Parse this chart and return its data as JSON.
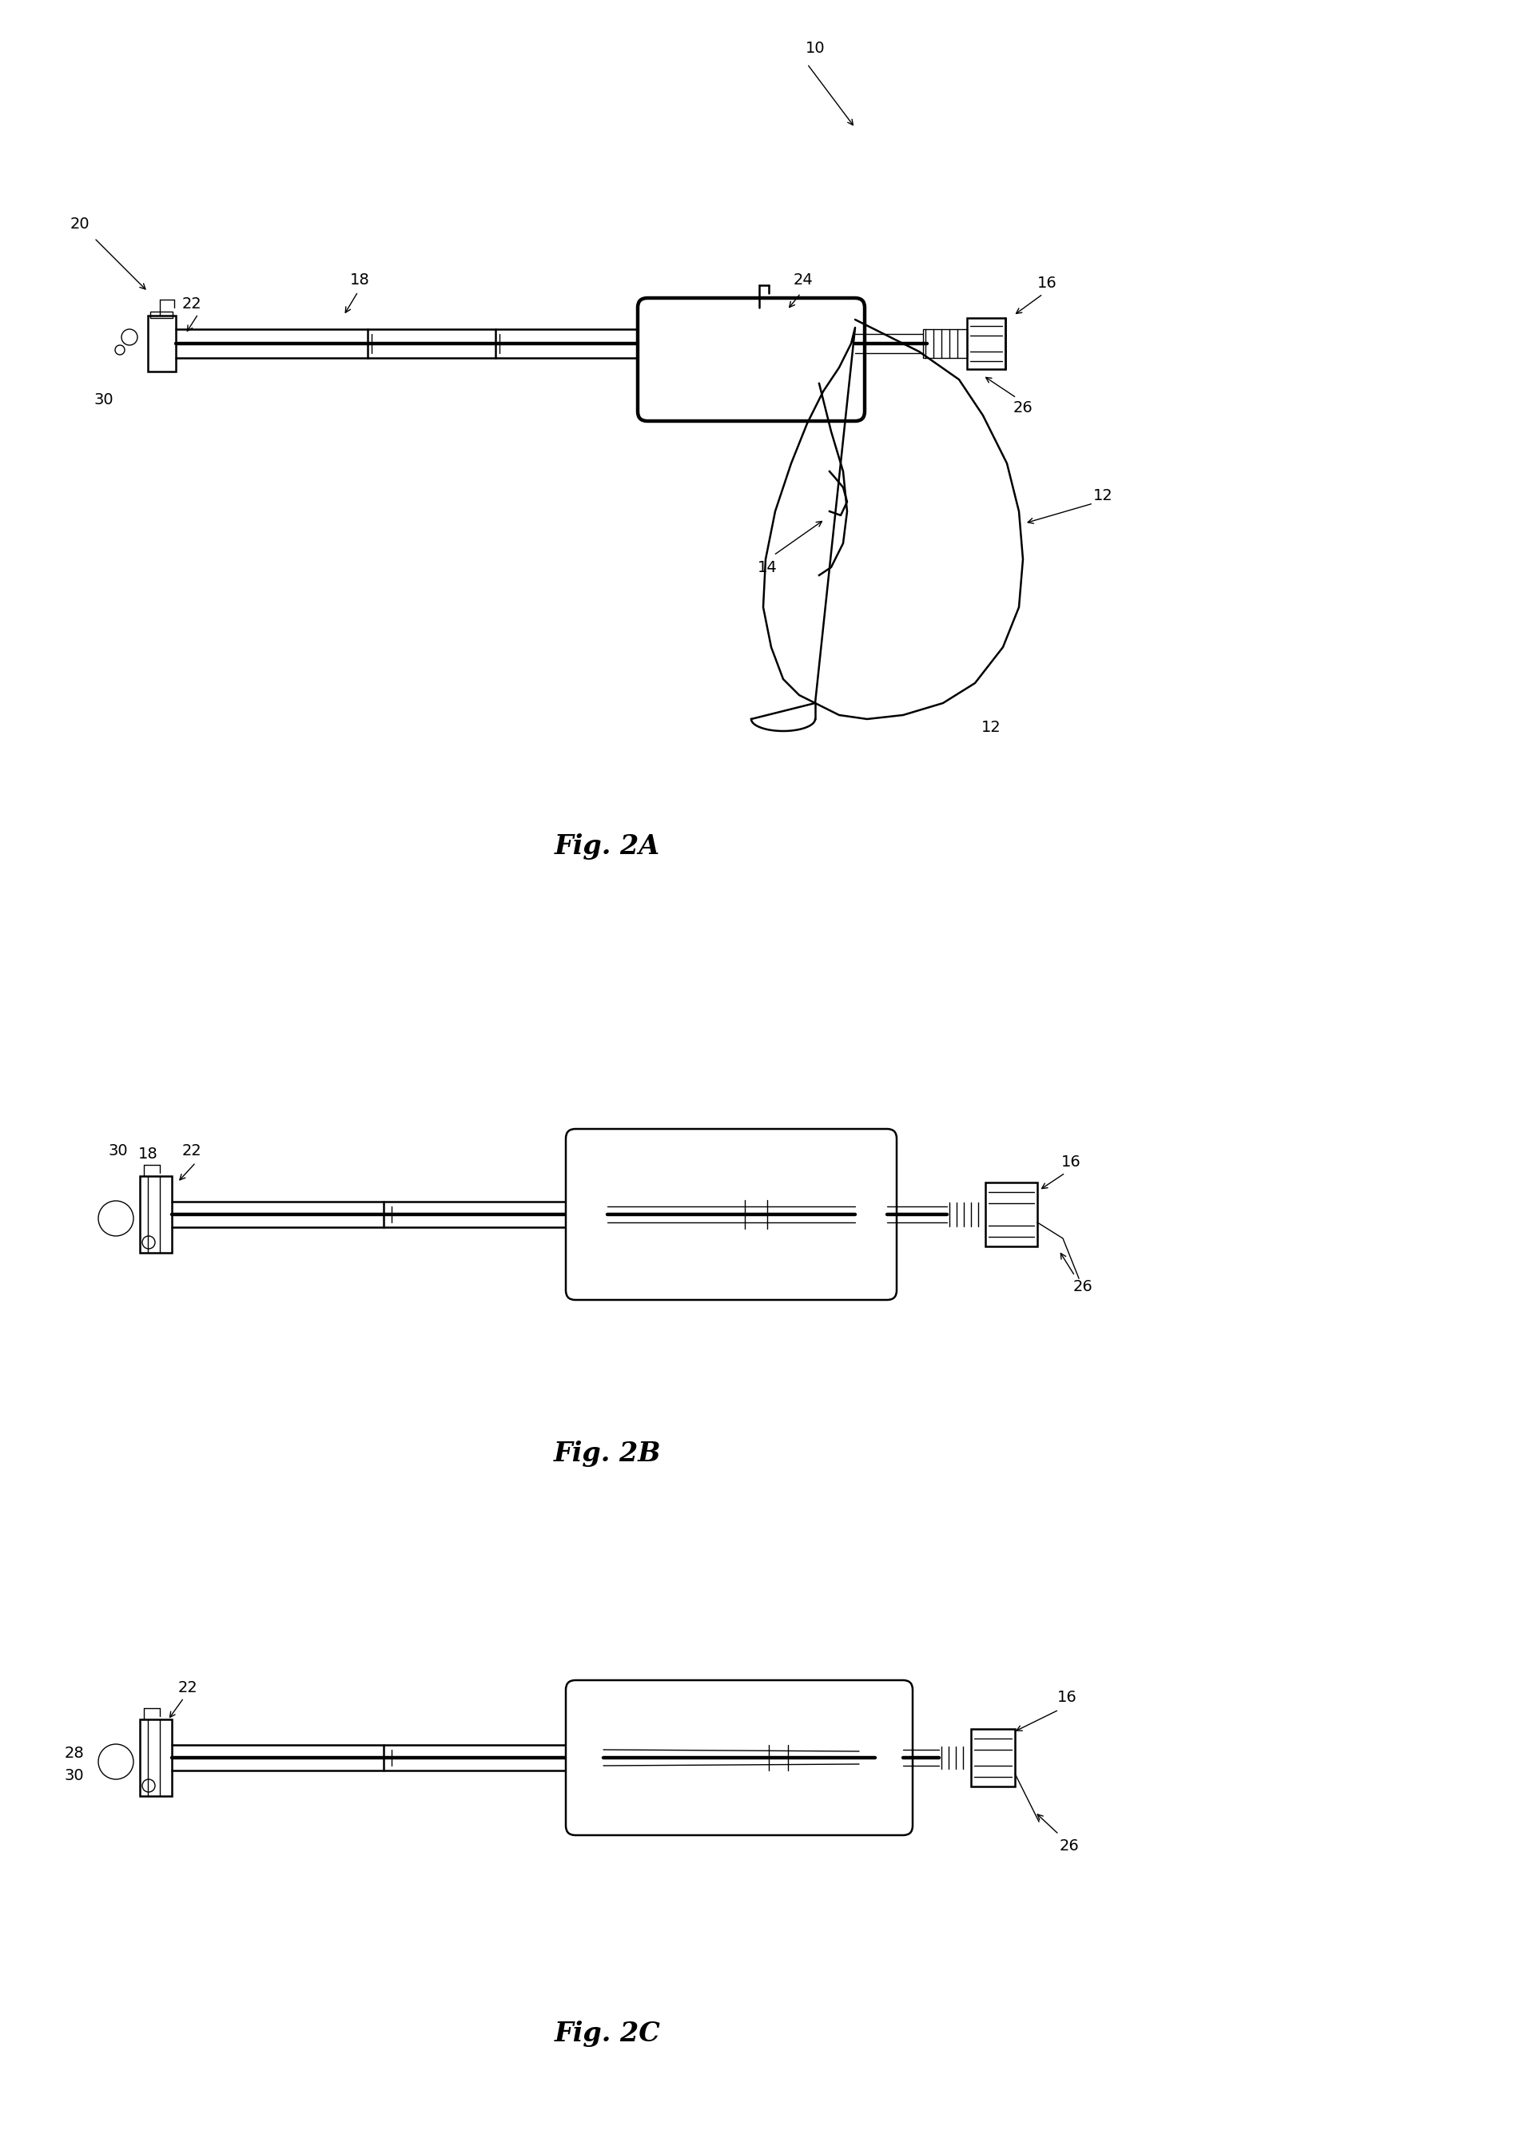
{
  "bg_color": "#ffffff",
  "line_color": "#000000",
  "fig_width": 19.12,
  "fig_height": 26.86,
  "fig2a_caption": "Fig. 2A",
  "fig2b_caption": "Fig. 2B",
  "fig2c_caption": "Fig. 2C",
  "lw_thin": 1.0,
  "lw_med": 1.8,
  "lw_thick": 2.5,
  "lw_bold": 3.2,
  "fontsize_label": 14,
  "fontsize_caption": 24
}
